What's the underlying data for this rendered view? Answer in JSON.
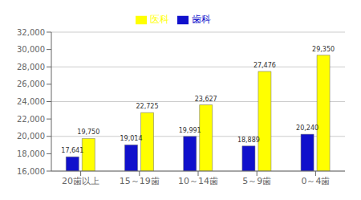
{
  "chart_data": {
    "type": "bar",
    "categories": [
      "20歯以上",
      "15～19歯",
      "10～14歯",
      "5～9歯",
      "0～4歯"
    ],
    "series": [
      {
        "name": "歯科",
        "color": "#1010CC",
        "values": [
          17641,
          19014,
          19991,
          18889,
          20240
        ],
        "value_labels": [
          "17,641",
          "19,014",
          "19,991",
          "18,889",
          "20,240"
        ]
      },
      {
        "name": "医科",
        "color": "#FFFF00",
        "values": [
          19750,
          22725,
          23627,
          27476,
          29350
        ],
        "value_labels": [
          "19,750",
          "22,725",
          "23,627",
          "27,476",
          "29,350"
        ]
      }
    ],
    "ylim": [
      16000,
      32000
    ],
    "yticks": [
      {
        "value": 16000,
        "label": "16,000"
      },
      {
        "value": 18000,
        "label": "18,000"
      },
      {
        "value": 20000,
        "label": "20,000"
      },
      {
        "value": 22000,
        "label": "22,000"
      },
      {
        "value": 24000,
        "label": "24,000"
      },
      {
        "value": 26000,
        "label": "26,000"
      },
      {
        "value": 28000,
        "label": "28,000"
      },
      {
        "value": 30000,
        "label": "30,000"
      },
      {
        "value": 32000,
        "label": "32,000"
      }
    ],
    "grid": true,
    "legend": "top",
    "data_labels": true
  }
}
